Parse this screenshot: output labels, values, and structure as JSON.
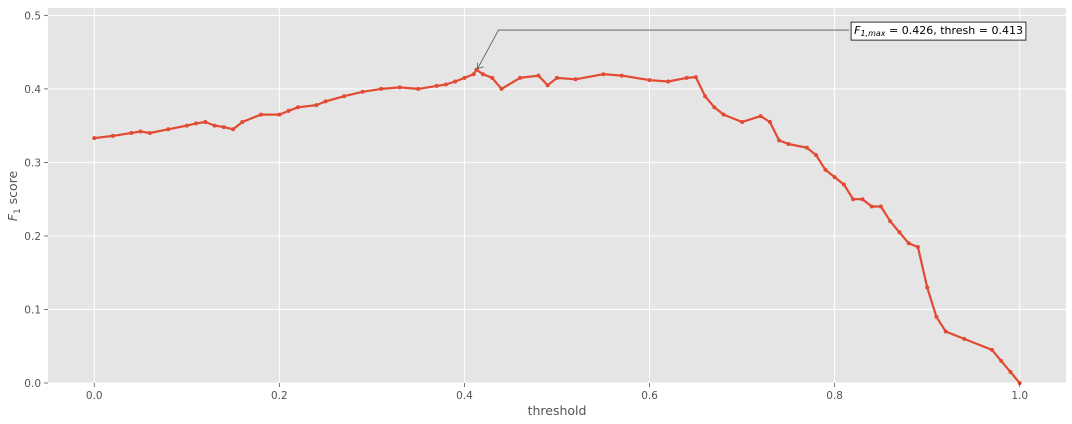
{
  "chart_data": {
    "type": "line",
    "title": "",
    "xlabel": "threshold",
    "ylabel_main": "F",
    "ylabel_sub": "1",
    "ylabel_rest": " score",
    "xlim": [
      -0.05,
      1.05
    ],
    "ylim": [
      0.0,
      0.51
    ],
    "xticks": [
      0.0,
      0.2,
      0.4,
      0.6,
      0.8,
      1.0
    ],
    "xtick_labels": [
      "0.0",
      "0.2",
      "0.4",
      "0.6",
      "0.8",
      "1.0"
    ],
    "yticks": [
      0.0,
      0.1,
      0.2,
      0.3,
      0.4,
      0.5
    ],
    "ytick_labels": [
      "0.0",
      "0.1",
      "0.2",
      "0.3",
      "0.4",
      "0.5"
    ],
    "grid": true,
    "style": "ggplot",
    "series_color": "#E24A33",
    "background_color": "#E5E5E5",
    "grid_color": "#FFFFFF",
    "annotation": {
      "prefix": "F",
      "sub": "1,max",
      "rest": " = 0.426, thresh = 0.413",
      "point": [
        0.413,
        0.426
      ],
      "text_at": [
        0.82,
        0.48
      ]
    },
    "x": [
      0.0,
      0.02,
      0.04,
      0.05,
      0.06,
      0.08,
      0.1,
      0.11,
      0.12,
      0.13,
      0.14,
      0.15,
      0.16,
      0.18,
      0.2,
      0.21,
      0.22,
      0.24,
      0.25,
      0.27,
      0.29,
      0.31,
      0.33,
      0.35,
      0.37,
      0.38,
      0.39,
      0.4,
      0.41,
      0.413,
      0.42,
      0.43,
      0.44,
      0.46,
      0.48,
      0.49,
      0.5,
      0.52,
      0.55,
      0.57,
      0.6,
      0.62,
      0.64,
      0.65,
      0.66,
      0.67,
      0.68,
      0.7,
      0.72,
      0.73,
      0.74,
      0.75,
      0.77,
      0.78,
      0.79,
      0.8,
      0.81,
      0.82,
      0.83,
      0.84,
      0.85,
      0.86,
      0.87,
      0.88,
      0.89,
      0.9,
      0.91,
      0.92,
      0.94,
      0.97,
      0.98,
      0.99,
      1.0
    ],
    "y": [
      0.333,
      0.336,
      0.34,
      0.342,
      0.34,
      0.345,
      0.35,
      0.353,
      0.355,
      0.35,
      0.348,
      0.345,
      0.355,
      0.365,
      0.365,
      0.37,
      0.375,
      0.378,
      0.383,
      0.39,
      0.396,
      0.4,
      0.402,
      0.4,
      0.404,
      0.406,
      0.41,
      0.415,
      0.42,
      0.426,
      0.42,
      0.415,
      0.4,
      0.415,
      0.418,
      0.405,
      0.415,
      0.413,
      0.42,
      0.418,
      0.412,
      0.41,
      0.415,
      0.416,
      0.39,
      0.375,
      0.365,
      0.355,
      0.363,
      0.355,
      0.33,
      0.325,
      0.32,
      0.31,
      0.29,
      0.28,
      0.27,
      0.25,
      0.25,
      0.24,
      0.24,
      0.22,
      0.205,
      0.19,
      0.185,
      0.13,
      0.09,
      0.07,
      0.06,
      0.045,
      0.03,
      0.015,
      0.0
    ]
  }
}
